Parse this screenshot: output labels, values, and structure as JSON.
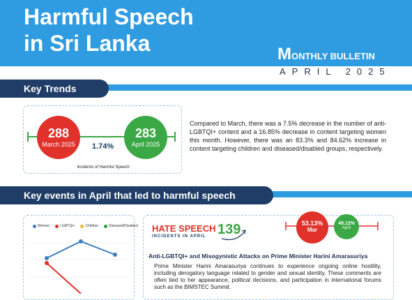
{
  "header": {
    "title_line1": "Harmful Speech",
    "title_line2": "in Sri Lanka",
    "bulletin_m": "M",
    "bulletin_rest": "ONTHLY BULLETIN",
    "month": "APRIL 2025"
  },
  "key_trends": {
    "heading": "Key Trends",
    "march_value": "288",
    "march_label": "March 2025",
    "april_value": "283",
    "april_label": "April 2025",
    "change": "1.74%",
    "caption": "Incidents of Harmful Speech",
    "paragraph": "Compared to March, there was a 7.5% decrease in the number of anti-LGBTQI+ content and a 16.85% decrease in content targeting women this month. However, there was an 83.3% and 84.62% increase in content targeting children and diseased/disabled groups, respectively."
  },
  "key_events": {
    "heading": "Key events in April that led to harmful speech",
    "hate_label": "HATE SPEECH",
    "hate_sub": "INCIDENTS IN APRIL",
    "hate_count": "139",
    "mar_pct": "53.13%",
    "mar_label": "Mar",
    "apr_pct": "49.12%",
    "apr_label": "April",
    "event_title": "Anti-LGBTQI+ and Misogynistic Attacks on Prime Minister Harini Amarasuriya",
    "event_text": "Prime Minister Harini Amarasuriya continues to experience ongoing online hostility, including derogatory language related to gender and sexual identity. These comments are often tied to her appearance, political decisions, and participation in international forums such as the BIMSTEC Summit."
  },
  "chart_data": {
    "type": "line",
    "legend": [
      "Women",
      "LGBTQI+",
      "Children",
      "Diseased/Disabled"
    ],
    "colors": {
      "Women": "#3d7fc2",
      "LGBTQI+": "#e0312b",
      "Children": "#f2b825",
      "Diseased/Disabled": "#2e9e48"
    },
    "note": "Chart partially visible; only leading points shown."
  },
  "colors": {
    "blue": "#2f9be0",
    "navy": "#1f3d66",
    "red": "#e0312b",
    "green": "#3aa844"
  }
}
